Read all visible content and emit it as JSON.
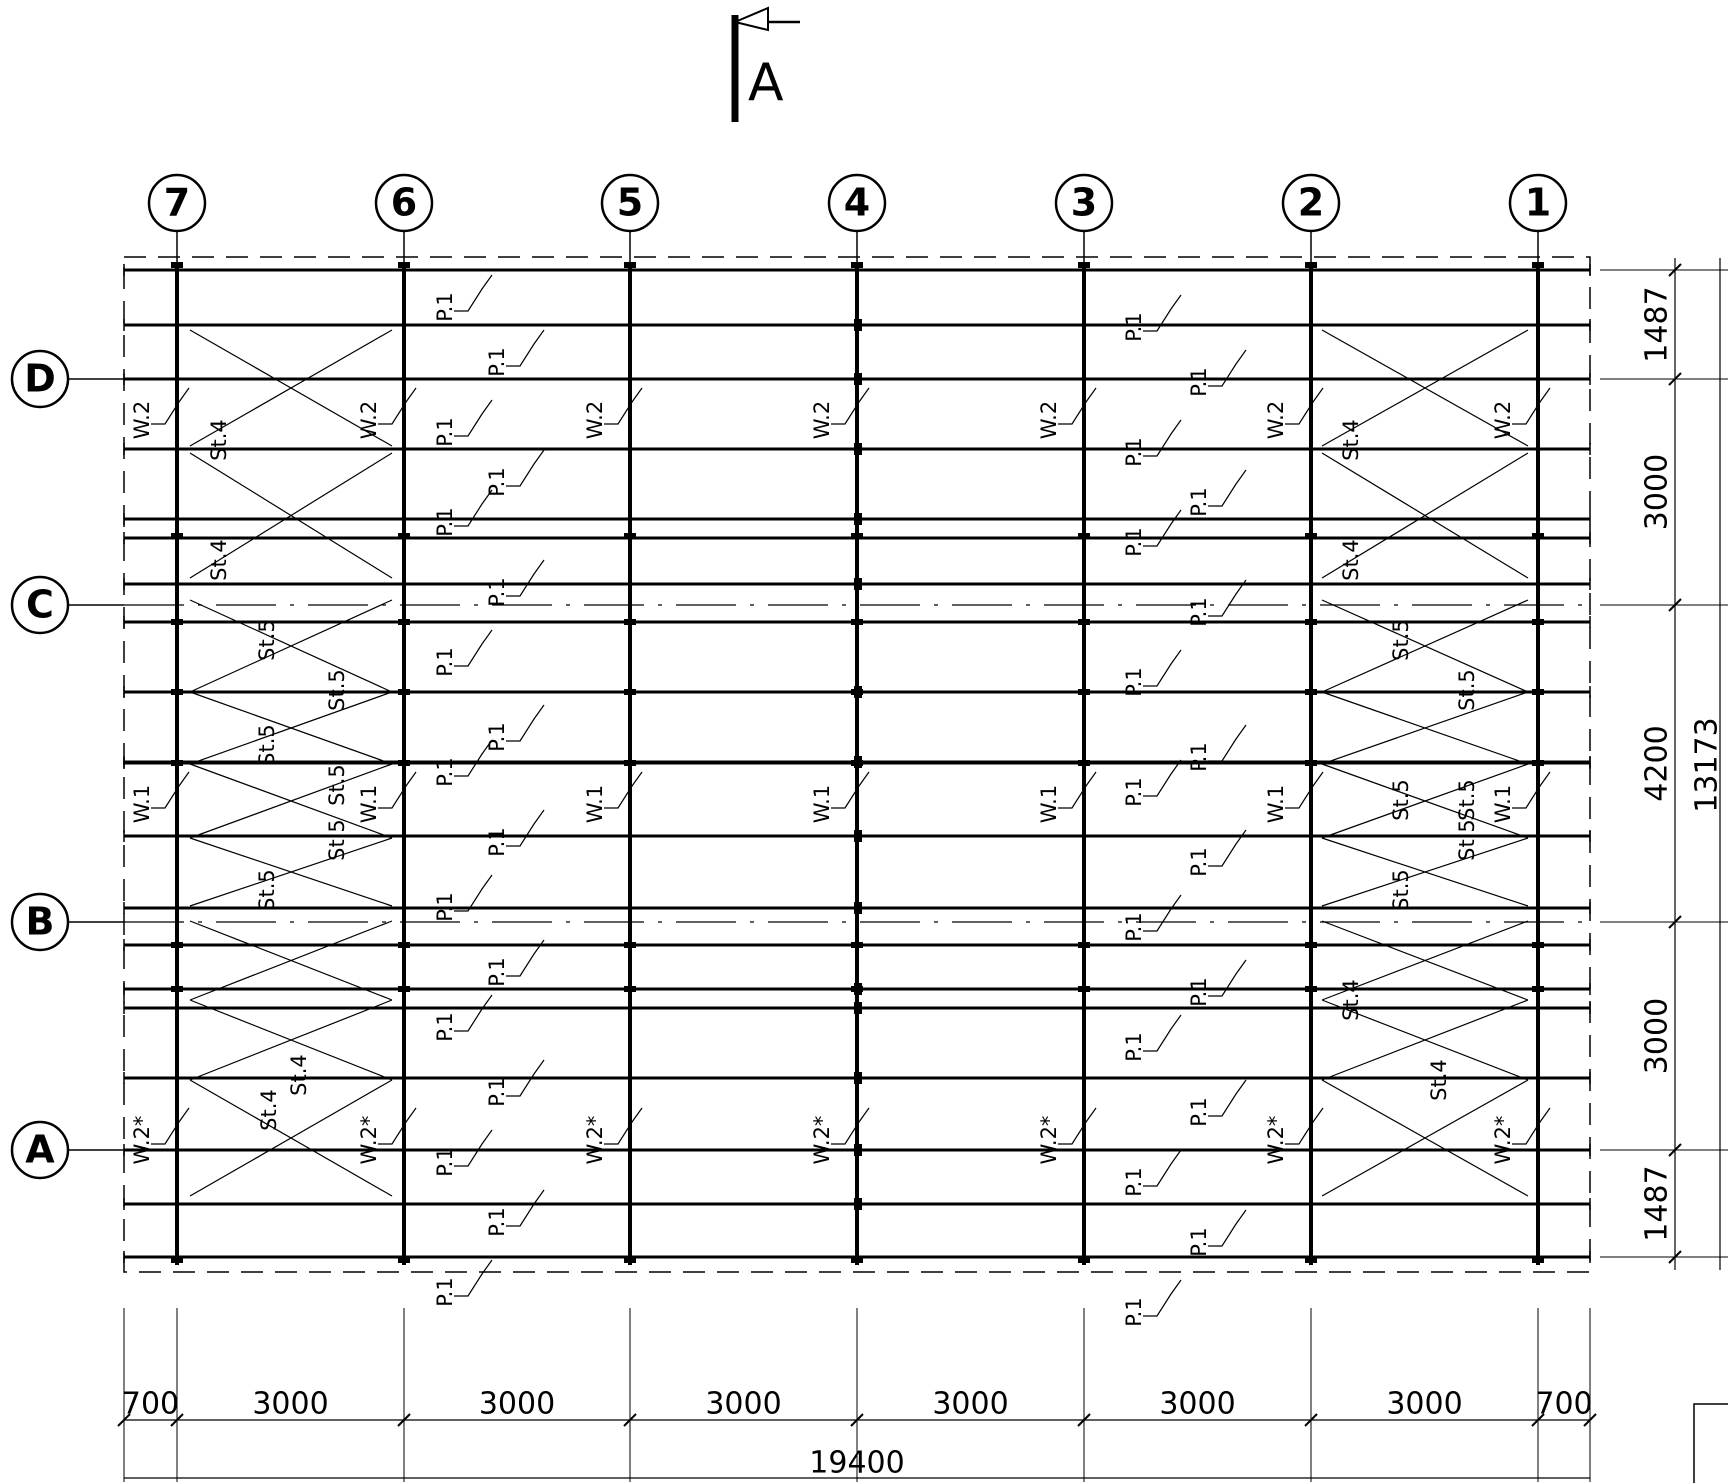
{
  "section_marker": "A",
  "column_axes": [
    "7",
    "6",
    "5",
    "4",
    "3",
    "2",
    "1"
  ],
  "row_axes": [
    "D",
    "C",
    "B",
    "A"
  ],
  "dimensions": {
    "bottom_spans": [
      "700",
      "3000",
      "3000",
      "3000",
      "3000",
      "3000",
      "3000",
      "700"
    ],
    "overall_width": "19400",
    "right_spans": [
      "1487",
      "3000",
      "4200",
      "3000",
      "1487"
    ],
    "overall_height": "13173"
  },
  "tags": {
    "wall_upper": "W.2",
    "wall_mid": "W.1",
    "wall_lower": "W.2*",
    "purlin": "P.1",
    "brace_outer": "St.4",
    "brace_inner": "St.5"
  }
}
